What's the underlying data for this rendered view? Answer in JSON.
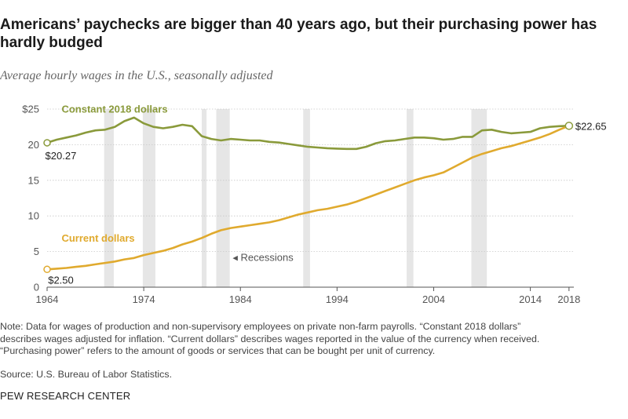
{
  "title": "Americans’ paychecks are bigger than 40 years ago, but their purchasing power has hardly budged",
  "subtitle": "Average hourly wages in the U.S., seasonally adjusted",
  "notes": {
    "line1": "Note: Data for wages of production and non-supervisory employees on private non-farm payrolls. “Constant 2018 dollars”",
    "line2": "describes wages adjusted for inflation. “Current dollars” describes wages reported in the value of the currency when received.",
    "line3": "“Purchasing power” refers to the amount of goods or services that can be bought per unit of currency.",
    "source": "Source: U.S. Bureau of Labor Statistics."
  },
  "brand": "PEW RESEARCH CENTER",
  "colors": {
    "constant": "#8a9a3b",
    "current": "#e0aa2e",
    "recession": "#e6e6e6",
    "grid": "#c8c8c8"
  },
  "chart_data": {
    "type": "line",
    "title": "Americans’ paychecks are bigger than 40 years ago, but their purchasing power has hardly budged",
    "subtitle": "Average hourly wages in the U.S., seasonally adjusted",
    "xlim": [
      1964,
      2018.5
    ],
    "ylim": [
      0,
      25
    ],
    "yticks": [
      {
        "value": 0,
        "label": "0"
      },
      {
        "value": 5,
        "label": "5"
      },
      {
        "value": 10,
        "label": "10"
      },
      {
        "value": 15,
        "label": "15"
      },
      {
        "value": 20,
        "label": "20"
      },
      {
        "value": 25,
        "label": "$25"
      }
    ],
    "xticks": [
      {
        "value": 1964,
        "label": "1964"
      },
      {
        "value": 1974,
        "label": "1974"
      },
      {
        "value": 1984,
        "label": "1984"
      },
      {
        "value": 1994,
        "label": "1994"
      },
      {
        "value": 2004,
        "label": "2004"
      },
      {
        "value": 2014,
        "label": "2014"
      },
      {
        "value": 2018,
        "label": "2018"
      }
    ],
    "grid": true,
    "recessions": [
      [
        1969.9,
        1970.9
      ],
      [
        1973.9,
        1975.2
      ],
      [
        1980.0,
        1980.5
      ],
      [
        1981.5,
        1982.9
      ],
      [
        1990.5,
        1991.2
      ],
      [
        2001.2,
        2001.9
      ],
      [
        2007.9,
        2009.5
      ]
    ],
    "recession_label": "Recessions",
    "series": [
      {
        "name": "Constant 2018 dollars",
        "start_label": "$20.27",
        "end_label": "$22.65",
        "points": [
          [
            1964,
            20.27
          ],
          [
            1965,
            20.7
          ],
          [
            1966,
            21.0
          ],
          [
            1967,
            21.3
          ],
          [
            1968,
            21.7
          ],
          [
            1969,
            22.0
          ],
          [
            1970,
            22.1
          ],
          [
            1971,
            22.5
          ],
          [
            1972,
            23.3
          ],
          [
            1973,
            23.8
          ],
          [
            1974,
            23.0
          ],
          [
            1975,
            22.5
          ],
          [
            1976,
            22.3
          ],
          [
            1977,
            22.5
          ],
          [
            1978,
            22.8
          ],
          [
            1979,
            22.6
          ],
          [
            1980,
            21.2
          ],
          [
            1981,
            20.8
          ],
          [
            1982,
            20.6
          ],
          [
            1983,
            20.8
          ],
          [
            1984,
            20.7
          ],
          [
            1985,
            20.6
          ],
          [
            1986,
            20.6
          ],
          [
            1987,
            20.4
          ],
          [
            1988,
            20.3
          ],
          [
            1989,
            20.1
          ],
          [
            1990,
            19.9
          ],
          [
            1991,
            19.7
          ],
          [
            1992,
            19.6
          ],
          [
            1993,
            19.5
          ],
          [
            1994,
            19.45
          ],
          [
            1995,
            19.4
          ],
          [
            1996,
            19.4
          ],
          [
            1997,
            19.7
          ],
          [
            1998,
            20.2
          ],
          [
            1999,
            20.5
          ],
          [
            2000,
            20.6
          ],
          [
            2001,
            20.8
          ],
          [
            2002,
            21.0
          ],
          [
            2003,
            21.0
          ],
          [
            2004,
            20.9
          ],
          [
            2005,
            20.7
          ],
          [
            2006,
            20.8
          ],
          [
            2007,
            21.1
          ],
          [
            2008,
            21.1
          ],
          [
            2009,
            22.0
          ],
          [
            2010,
            22.1
          ],
          [
            2011,
            21.8
          ],
          [
            2012,
            21.6
          ],
          [
            2013,
            21.7
          ],
          [
            2014,
            21.8
          ],
          [
            2015,
            22.3
          ],
          [
            2016,
            22.5
          ],
          [
            2017,
            22.6
          ],
          [
            2018,
            22.65
          ]
        ]
      },
      {
        "name": "Current dollars",
        "start_label": "$2.50",
        "points": [
          [
            1964,
            2.5
          ],
          [
            1965,
            2.6
          ],
          [
            1966,
            2.7
          ],
          [
            1967,
            2.85
          ],
          [
            1968,
            3.0
          ],
          [
            1969,
            3.2
          ],
          [
            1970,
            3.4
          ],
          [
            1971,
            3.6
          ],
          [
            1972,
            3.9
          ],
          [
            1973,
            4.1
          ],
          [
            1974,
            4.5
          ],
          [
            1975,
            4.8
          ],
          [
            1976,
            5.1
          ],
          [
            1977,
            5.5
          ],
          [
            1978,
            6.0
          ],
          [
            1979,
            6.4
          ],
          [
            1980,
            6.9
          ],
          [
            1981,
            7.5
          ],
          [
            1982,
            8.0
          ],
          [
            1983,
            8.3
          ],
          [
            1984,
            8.5
          ],
          [
            1985,
            8.7
          ],
          [
            1986,
            8.9
          ],
          [
            1987,
            9.1
          ],
          [
            1988,
            9.4
          ],
          [
            1989,
            9.8
          ],
          [
            1990,
            10.2
          ],
          [
            1991,
            10.5
          ],
          [
            1992,
            10.8
          ],
          [
            1993,
            11.0
          ],
          [
            1994,
            11.3
          ],
          [
            1995,
            11.6
          ],
          [
            1996,
            12.0
          ],
          [
            1997,
            12.5
          ],
          [
            1998,
            13.0
          ],
          [
            1999,
            13.5
          ],
          [
            2000,
            14.0
          ],
          [
            2001,
            14.5
          ],
          [
            2002,
            15.0
          ],
          [
            2003,
            15.4
          ],
          [
            2004,
            15.7
          ],
          [
            2005,
            16.1
          ],
          [
            2006,
            16.8
          ],
          [
            2007,
            17.5
          ],
          [
            2008,
            18.2
          ],
          [
            2009,
            18.7
          ],
          [
            2010,
            19.1
          ],
          [
            2011,
            19.5
          ],
          [
            2012,
            19.8
          ],
          [
            2013,
            20.2
          ],
          [
            2014,
            20.6
          ],
          [
            2015,
            21.0
          ],
          [
            2016,
            21.5
          ],
          [
            2017,
            22.1
          ],
          [
            2018,
            22.65
          ]
        ]
      }
    ]
  }
}
